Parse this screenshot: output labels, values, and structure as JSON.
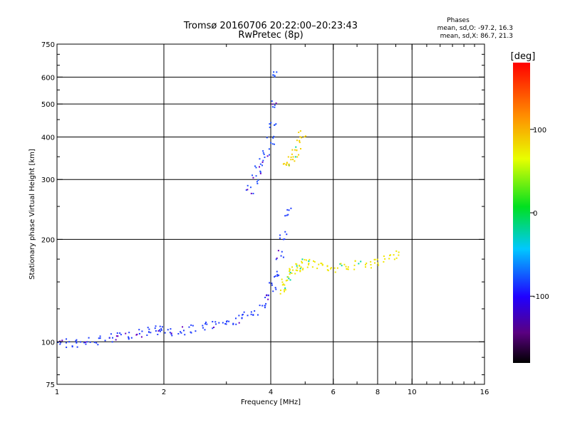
{
  "chart_data": {
    "type": "scatter",
    "title": "Tromsø 20160706 20:22:00–20:23:43",
    "subtitle": "RwPretec (8p)",
    "xlabel": "Frequency [MHz]",
    "ylabel": "Stationary phase Virtual Height [km]",
    "x_scale": "log2",
    "y_scale": "log",
    "xlim": [
      1,
      16
    ],
    "ylim": [
      75,
      750
    ],
    "x_ticks": [
      1,
      2,
      4,
      6,
      8,
      10,
      16
    ],
    "x_tick_labels": [
      "1",
      "2",
      "4",
      "6",
      "8",
      "10",
      "16"
    ],
    "y_ticks": [
      75,
      100,
      200,
      300,
      400,
      500,
      600,
      750
    ],
    "y_tick_labels": [
      "75",
      "100",
      "200",
      "300",
      "400",
      "500",
      "600",
      "750"
    ],
    "x_grid": [
      2,
      4,
      6,
      8,
      10
    ],
    "y_grid": [
      100,
      200,
      300,
      400,
      500,
      600
    ],
    "grid": true,
    "phases": {
      "heading": "Phases",
      "o_mode": "mean, sd,O: -97.2, 16.3",
      "x_mode": "mean, sd,X:  86.7, 21.3"
    },
    "colorbar": {
      "label": "[deg]",
      "range": [
        -180,
        180
      ],
      "ticks": [
        100,
        0,
        -100
      ],
      "tick_labels": [
        "100",
        "0",
        "-100"
      ],
      "placement": "right"
    },
    "series": [
      {
        "mode": "O",
        "phase": -97,
        "color": "#1f3cff",
        "x": [
          1.02,
          1.08,
          1.15,
          1.22,
          1.3,
          1.4,
          1.5,
          1.6,
          1.7,
          1.8,
          1.9,
          2.0,
          2.1,
          2.25,
          2.4,
          2.6,
          2.8,
          3.0,
          3.2,
          3.4,
          3.6,
          3.8,
          3.95,
          4.05,
          4.15,
          4.25,
          4.35,
          4.5
        ],
        "y": [
          100,
          99,
          99,
          100,
          101,
          103,
          104,
          105,
          106,
          107,
          108,
          108,
          107,
          108,
          109,
          111,
          112,
          114,
          116,
          119,
          123,
          128,
          135,
          145,
          160,
          180,
          205,
          240
        ]
      },
      {
        "mode": "X",
        "phase": 87,
        "color": "#f0e600",
        "x": [
          4.3,
          4.4,
          4.5,
          4.6,
          4.7,
          4.8,
          4.9,
          5.0,
          5.2,
          5.5,
          5.8,
          6.2,
          6.6,
          7.0,
          7.5,
          8.0,
          8.5,
          9.0
        ],
        "y": [
          140,
          150,
          155,
          160,
          163,
          166,
          168,
          170,
          170,
          168,
          166,
          165,
          166,
          168,
          170,
          173,
          176,
          180
        ]
      },
      {
        "mode": "O-F2",
        "phase": -100,
        "color": "#2050ff",
        "x": [
          3.5,
          3.6,
          3.7,
          3.8,
          3.9,
          4.0,
          4.05,
          4.1,
          4.15
        ],
        "y": [
          280,
          300,
          320,
          340,
          360,
          390,
          430,
          500,
          620
        ]
      },
      {
        "mode": "X-F2",
        "phase": 95,
        "color": "#f4d000",
        "x": [
          4.4,
          4.5,
          4.6,
          4.7,
          4.8,
          4.9
        ],
        "y": [
          330,
          340,
          350,
          360,
          380,
          410
        ]
      }
    ]
  }
}
